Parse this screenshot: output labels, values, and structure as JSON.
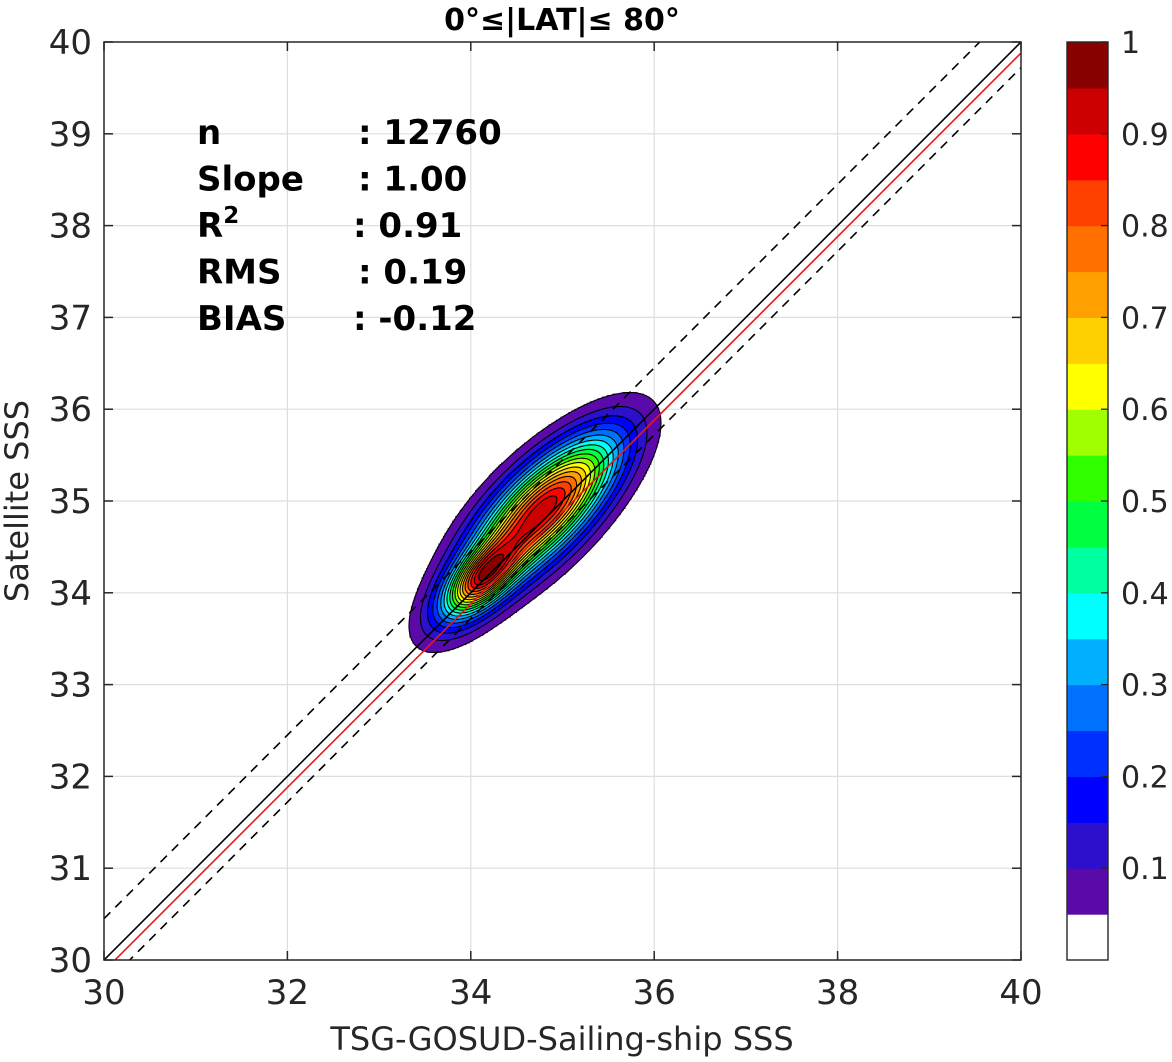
{
  "chart_data": {
    "type": "contour",
    "title": "0°≤|LAT|≤ 80°",
    "xlabel": "TSG-GOSUD-Sailing-ship SSS",
    "ylabel": "Satellite SSS",
    "xlim": [
      30,
      40
    ],
    "ylim": [
      30,
      40
    ],
    "xticks": [
      30,
      32,
      34,
      36,
      38,
      40
    ],
    "yticks": [
      30,
      31,
      32,
      33,
      34,
      35,
      36,
      37,
      38,
      39,
      40
    ],
    "grid": true,
    "stats": [
      {
        "label": "n",
        "value": ": 12760"
      },
      {
        "label": "Slope",
        "value": ": 1.00"
      },
      {
        "label": "R",
        "sup": "2",
        "value": ": 0.91"
      },
      {
        "label": "RMS",
        "value": ": 0.19"
      },
      {
        "label": "BIAS",
        "value": ": -0.12"
      }
    ],
    "lines": [
      {
        "kind": "one-to-one",
        "color": "#000000",
        "style": "solid",
        "intercept": 0
      },
      {
        "kind": "bias-fit",
        "color": "#e41a1c",
        "style": "solid",
        "intercept": -0.12
      },
      {
        "kind": "upper-bound",
        "color": "#000000",
        "style": "dashed",
        "intercept": 0.45
      },
      {
        "kind": "lower-bound",
        "color": "#000000",
        "style": "dashed",
        "intercept": -0.28
      }
    ],
    "density_peaks": [
      {
        "x": 34.72,
        "y": 34.84,
        "amplitude": 1.0,
        "sx": 0.65,
        "sy": 0.28
      },
      {
        "x": 34.12,
        "y": 34.16,
        "amplitude": 0.62,
        "sx": 0.33,
        "sy": 0.16
      },
      {
        "x": 35.25,
        "y": 35.35,
        "amplitude": 0.22,
        "sx": 0.55,
        "sy": 0.25
      },
      {
        "x": 33.95,
        "y": 33.95,
        "amplitude": 0.18,
        "sx": 0.45,
        "sy": 0.22
      }
    ],
    "contour_levels": [
      0.05,
      0.1,
      0.15,
      0.2,
      0.25,
      0.3,
      0.35,
      0.4,
      0.45,
      0.5,
      0.55,
      0.6,
      0.65,
      0.7,
      0.75,
      0.8,
      0.85,
      0.9,
      0.95
    ],
    "colorbar": {
      "ticks": [
        "0.1",
        "0.2",
        "0.3",
        "0.4",
        "0.5",
        "0.6",
        "0.7",
        "0.8",
        "0.9",
        "1"
      ],
      "tick_values": [
        0.1,
        0.2,
        0.3,
        0.4,
        0.5,
        0.6,
        0.7,
        0.8,
        0.9,
        1.0
      ],
      "colors": [
        "#ffffff",
        "#5a0aa8",
        "#2d10cc",
        "#0000ff",
        "#0030ff",
        "#0070ff",
        "#00b0ff",
        "#00ffff",
        "#00ffa0",
        "#00ff40",
        "#30ff00",
        "#a0ff00",
        "#ffff00",
        "#ffd000",
        "#ffa000",
        "#ff7000",
        "#ff4000",
        "#ff0000",
        "#cc0000",
        "#880000"
      ]
    }
  }
}
